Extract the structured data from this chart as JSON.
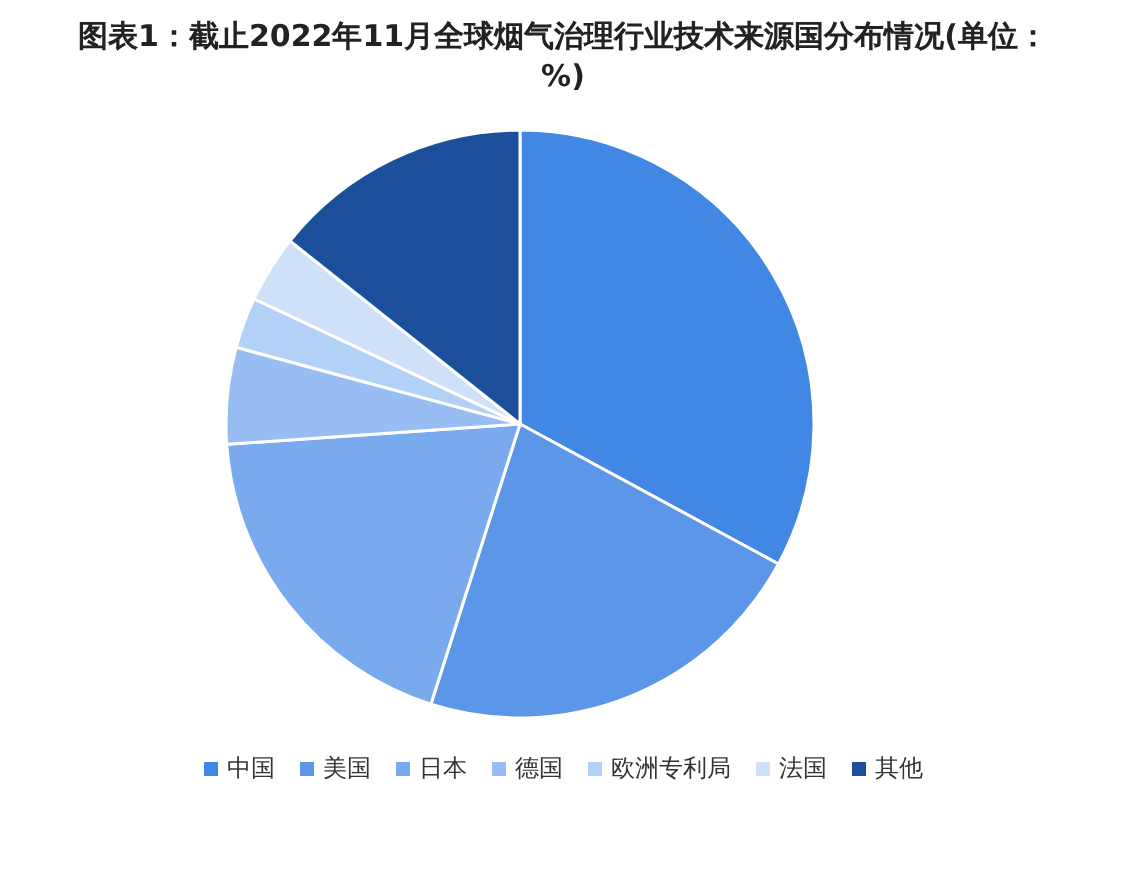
{
  "chart_data": {
    "type": "pie",
    "title": "图表1：截止2022年11月全球烟气治理行业技术来源国分布情况(单位：%)",
    "categories": [
      "中国",
      "美国",
      "日本",
      "德国",
      "欧洲专利局",
      "法国",
      "其他"
    ],
    "values": [
      32.9,
      22,
      19,
      5.3,
      2.8,
      3.7,
      14.3
    ],
    "colors": [
      "#4287e3",
      "#5b96e8",
      "#7aaaee",
      "#97bdf2",
      "#b3d0f6",
      "#cfe1f9",
      "#1b4f9c"
    ],
    "legend": "bottom"
  }
}
